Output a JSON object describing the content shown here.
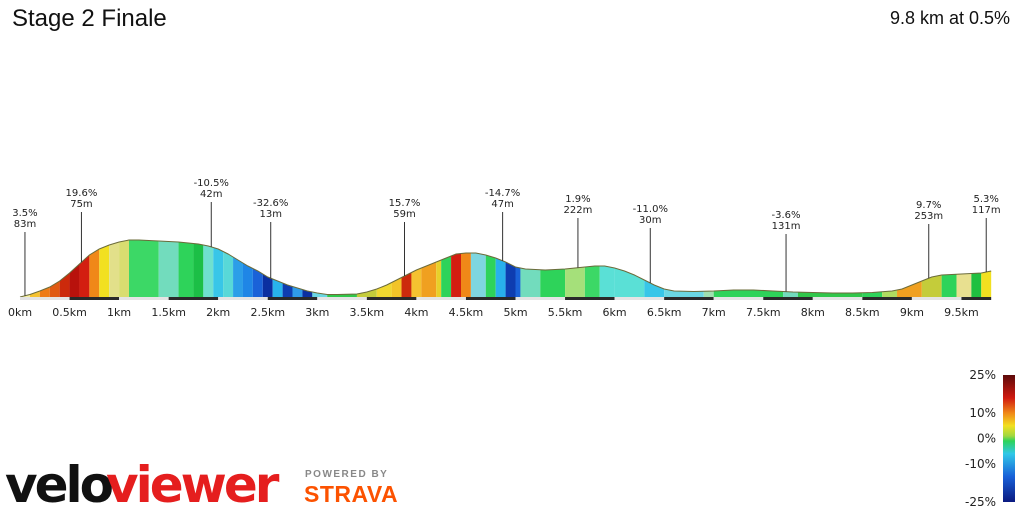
{
  "header": {
    "title": "Stage 2 Finale",
    "summary": "9.8 km at 0.5%"
  },
  "branding": {
    "logo_velo": "velo",
    "logo_viewer": "viewer",
    "powered_by": "POWERED BY",
    "strava": "STRAVA",
    "colors": {
      "velo": "#111111",
      "viewer": "#e51e1e",
      "strava": "#fc5200"
    }
  },
  "chart_data": {
    "type": "area",
    "title": "Stage 2 Finale",
    "subtitle": "9.8 km at 0.5%",
    "xlabel": "",
    "ylabel": "",
    "xlim": [
      0,
      9.8
    ],
    "x_ticks": [
      "0km",
      "0.5km",
      "1km",
      "1.5km",
      "2km",
      "2.5km",
      "3km",
      "3.5km",
      "4km",
      "4.5km",
      "5km",
      "5.5km",
      "6km",
      "6.5km",
      "7km",
      "7.5km",
      "8km",
      "8.5km",
      "9km",
      "9.5km"
    ],
    "x_tick_values": [
      0,
      0.5,
      1,
      1.5,
      2,
      2.5,
      3,
      3.5,
      4,
      4.5,
      5,
      5.5,
      6,
      6.5,
      7,
      7.5,
      8,
      8.5,
      9,
      9.5
    ],
    "elevation_relative": [
      [
        0,
        0
      ],
      [
        0.1,
        2.5
      ],
      [
        0.2,
        6
      ],
      [
        0.3,
        10
      ],
      [
        0.4,
        16
      ],
      [
        0.5,
        24
      ],
      [
        0.6,
        33
      ],
      [
        0.7,
        42
      ],
      [
        0.8,
        48
      ],
      [
        0.9,
        52
      ],
      [
        1.0,
        55
      ],
      [
        1.1,
        57
      ],
      [
        1.2,
        57
      ],
      [
        1.4,
        56
      ],
      [
        1.6,
        55
      ],
      [
        1.8,
        53
      ],
      [
        1.9,
        51
      ],
      [
        2.0,
        48
      ],
      [
        2.1,
        43
      ],
      [
        2.2,
        37
      ],
      [
        2.3,
        31
      ],
      [
        2.4,
        26
      ],
      [
        2.5,
        20
      ],
      [
        2.6,
        16
      ],
      [
        2.7,
        12
      ],
      [
        2.8,
        9
      ],
      [
        2.9,
        6
      ],
      [
        3.0,
        4
      ],
      [
        3.1,
        2.5
      ],
      [
        3.2,
        2.5
      ],
      [
        3.4,
        3
      ],
      [
        3.5,
        5
      ],
      [
        3.6,
        8
      ],
      [
        3.7,
        12
      ],
      [
        3.8,
        17
      ],
      [
        3.9,
        22
      ],
      [
        4.0,
        27
      ],
      [
        4.1,
        31
      ],
      [
        4.2,
        35
      ],
      [
        4.3,
        39
      ],
      [
        4.4,
        43
      ],
      [
        4.5,
        44
      ],
      [
        4.6,
        44
      ],
      [
        4.7,
        42
      ],
      [
        4.8,
        39
      ],
      [
        4.9,
        35
      ],
      [
        5.0,
        30
      ],
      [
        5.1,
        28
      ],
      [
        5.3,
        27
      ],
      [
        5.5,
        28
      ],
      [
        5.6,
        29
      ],
      [
        5.8,
        31
      ],
      [
        5.9,
        31
      ],
      [
        6.0,
        29
      ],
      [
        6.1,
        26
      ],
      [
        6.2,
        22
      ],
      [
        6.3,
        17
      ],
      [
        6.4,
        12
      ],
      [
        6.5,
        8
      ],
      [
        6.6,
        6
      ],
      [
        6.8,
        5.5
      ],
      [
        7.0,
        6
      ],
      [
        7.2,
        7
      ],
      [
        7.4,
        7
      ],
      [
        7.6,
        6
      ],
      [
        7.8,
        5
      ],
      [
        8.0,
        4.5
      ],
      [
        8.2,
        4
      ],
      [
        8.4,
        4
      ],
      [
        8.6,
        4.5
      ],
      [
        8.8,
        6
      ],
      [
        8.9,
        8
      ],
      [
        9.0,
        12
      ],
      [
        9.1,
        16
      ],
      [
        9.2,
        20
      ],
      [
        9.3,
        22
      ],
      [
        9.5,
        23
      ],
      [
        9.7,
        24
      ],
      [
        9.8,
        26
      ]
    ],
    "segments": [
      {
        "x0": 0,
        "x1": 0.1,
        "color": "#f7f1a0"
      },
      {
        "x0": 0.1,
        "x1": 0.2,
        "color": "#f5c230"
      },
      {
        "x0": 0.2,
        "x1": 0.3,
        "color": "#ee7b18"
      },
      {
        "x0": 0.3,
        "x1": 0.4,
        "color": "#e05a12"
      },
      {
        "x0": 0.4,
        "x1": 0.5,
        "color": "#cc2a0c"
      },
      {
        "x0": 0.5,
        "x1": 0.6,
        "color": "#b8120c"
      },
      {
        "x0": 0.6,
        "x1": 0.7,
        "color": "#d31e10"
      },
      {
        "x0": 0.7,
        "x1": 0.8,
        "color": "#f08818"
      },
      {
        "x0": 0.8,
        "x1": 0.9,
        "color": "#f2e020"
      },
      {
        "x0": 0.9,
        "x1": 1.0,
        "color": "#e2e08a"
      },
      {
        "x0": 1.0,
        "x1": 1.1,
        "color": "#d9dd70"
      },
      {
        "x0": 1.1,
        "x1": 1.4,
        "color": "#3cd866"
      },
      {
        "x0": 1.4,
        "x1": 1.6,
        "color": "#72dcbd"
      },
      {
        "x0": 1.6,
        "x1": 1.75,
        "color": "#2ed35a"
      },
      {
        "x0": 1.75,
        "x1": 1.85,
        "color": "#1cbf46"
      },
      {
        "x0": 1.85,
        "x1": 1.95,
        "color": "#6fe0cf"
      },
      {
        "x0": 1.95,
        "x1": 2.05,
        "color": "#38c6e8"
      },
      {
        "x0": 2.05,
        "x1": 2.15,
        "color": "#58d8d8"
      },
      {
        "x0": 2.15,
        "x1": 2.25,
        "color": "#2c9ee8"
      },
      {
        "x0": 2.25,
        "x1": 2.35,
        "color": "#1f86e6"
      },
      {
        "x0": 2.35,
        "x1": 2.45,
        "color": "#1a62d8"
      },
      {
        "x0": 2.45,
        "x1": 2.55,
        "color": "#0b2fa0"
      },
      {
        "x0": 2.55,
        "x1": 2.65,
        "color": "#28b4ec"
      },
      {
        "x0": 2.65,
        "x1": 2.75,
        "color": "#0e3db0"
      },
      {
        "x0": 2.75,
        "x1": 2.85,
        "color": "#2f9be8"
      },
      {
        "x0": 2.85,
        "x1": 2.95,
        "color": "#0b2fa0"
      },
      {
        "x0": 2.95,
        "x1": 3.1,
        "color": "#6bd7e3"
      },
      {
        "x0": 3.1,
        "x1": 3.4,
        "color": "#30c64a"
      },
      {
        "x0": 3.4,
        "x1": 3.6,
        "color": "#c4cc3a"
      },
      {
        "x0": 3.6,
        "x1": 3.75,
        "color": "#f0d830"
      },
      {
        "x0": 3.75,
        "x1": 3.85,
        "color": "#f2c428"
      },
      {
        "x0": 3.85,
        "x1": 3.95,
        "color": "#cc2a0c"
      },
      {
        "x0": 3.95,
        "x1": 4.05,
        "color": "#f5c230"
      },
      {
        "x0": 4.05,
        "x1": 4.2,
        "color": "#f0a020"
      },
      {
        "x0": 4.2,
        "x1": 4.25,
        "color": "#e8d02a"
      },
      {
        "x0": 4.25,
        "x1": 4.35,
        "color": "#2ed35a"
      },
      {
        "x0": 4.35,
        "x1": 4.45,
        "color": "#d31e10"
      },
      {
        "x0": 4.45,
        "x1": 4.55,
        "color": "#f08818"
      },
      {
        "x0": 4.55,
        "x1": 4.7,
        "color": "#7ed6e0"
      },
      {
        "x0": 4.7,
        "x1": 4.8,
        "color": "#2ed35a"
      },
      {
        "x0": 4.8,
        "x1": 4.9,
        "color": "#28b0ec"
      },
      {
        "x0": 4.9,
        "x1": 5.0,
        "color": "#0e3db0"
      },
      {
        "x0": 5.0,
        "x1": 5.05,
        "color": "#1a62d8"
      },
      {
        "x0": 5.05,
        "x1": 5.25,
        "color": "#72dcbd"
      },
      {
        "x0": 5.25,
        "x1": 5.5,
        "color": "#2ed35a"
      },
      {
        "x0": 5.5,
        "x1": 5.7,
        "color": "#a5e07a"
      },
      {
        "x0": 5.7,
        "x1": 5.85,
        "color": "#3cd866"
      },
      {
        "x0": 5.85,
        "x1": 6.0,
        "color": "#5ae0d6"
      },
      {
        "x0": 6.0,
        "x1": 6.3,
        "color": "#5ae0d6"
      },
      {
        "x0": 6.3,
        "x1": 6.5,
        "color": "#38c6e8"
      },
      {
        "x0": 6.5,
        "x1": 6.9,
        "color": "#6bd7e3"
      },
      {
        "x0": 6.9,
        "x1": 7.0,
        "color": "#9fe0b0"
      },
      {
        "x0": 7.0,
        "x1": 7.7,
        "color": "#2ed35a"
      },
      {
        "x0": 7.7,
        "x1": 7.85,
        "color": "#72dcbd"
      },
      {
        "x0": 7.85,
        "x1": 8.5,
        "color": "#30c64a"
      },
      {
        "x0": 8.5,
        "x1": 8.7,
        "color": "#2ed35a"
      },
      {
        "x0": 8.7,
        "x1": 8.85,
        "color": "#b0dc60"
      },
      {
        "x0": 8.85,
        "x1": 9.1,
        "color": "#f0a020"
      },
      {
        "x0": 9.1,
        "x1": 9.3,
        "color": "#c4cc3a"
      },
      {
        "x0": 9.3,
        "x1": 9.45,
        "color": "#2ed35a"
      },
      {
        "x0": 9.45,
        "x1": 9.6,
        "color": "#e8e090"
      },
      {
        "x0": 9.6,
        "x1": 9.7,
        "color": "#20c040"
      },
      {
        "x0": 9.7,
        "x1": 9.8,
        "color": "#f2e020"
      }
    ],
    "annotations": [
      {
        "x": 0.05,
        "grade": "3.5%",
        "distance": "83m",
        "level": 2
      },
      {
        "x": 0.62,
        "grade": "19.6%",
        "distance": "75m",
        "level": 0
      },
      {
        "x": 1.93,
        "grade": "-10.5%",
        "distance": "42m",
        "level": -1
      },
      {
        "x": 2.53,
        "grade": "-32.6%",
        "distance": "13m",
        "level": 1
      },
      {
        "x": 3.88,
        "grade": "15.7%",
        "distance": "59m",
        "level": 1
      },
      {
        "x": 4.87,
        "grade": "-14.7%",
        "distance": "47m",
        "level": 0
      },
      {
        "x": 5.63,
        "grade": "1.9%",
        "distance": "222m",
        "level": 0.6
      },
      {
        "x": 6.36,
        "grade": "-11.0%",
        "distance": "30m",
        "level": 1.6
      },
      {
        "x": 7.73,
        "grade": "-3.6%",
        "distance": "131m",
        "level": 2.2
      },
      {
        "x": 9.17,
        "grade": "9.7%",
        "distance": "253m",
        "level": 1.2
      },
      {
        "x": 9.75,
        "grade": "5.3%",
        "distance": "117m",
        "level": 0.6
      }
    ],
    "legend": {
      "labels": [
        "25%",
        "10%",
        "0%",
        "-10%",
        "-25%"
      ],
      "values": [
        25,
        10,
        0,
        -10,
        -25
      ],
      "colors": [
        "#5c0a0a",
        "#e02010",
        "#f08818",
        "#f2e020",
        "#2ed35a",
        "#30c8e8",
        "#1860d8",
        "#0b1a80"
      ]
    }
  }
}
